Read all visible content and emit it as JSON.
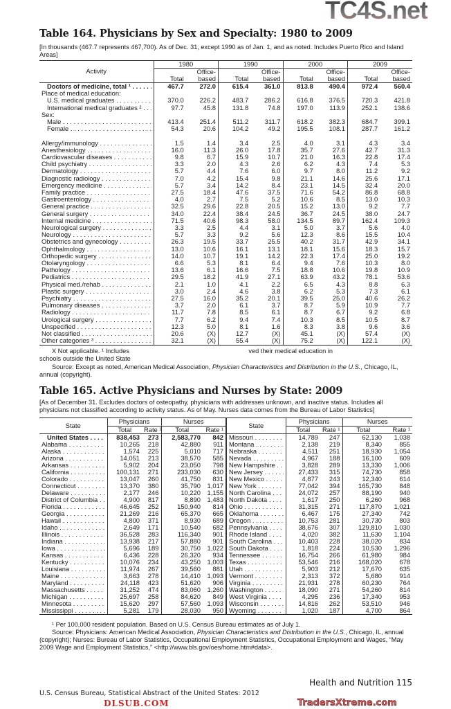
{
  "watermarks": {
    "top": "TC4S.net",
    "middle": "DLSUB.COM",
    "bottom": "TradersXtreme.com"
  },
  "table164": {
    "title": "Table 164. Physicians by Sex and Specialty: 1980 to 2009",
    "note": "[In thousands (467.7 represents 467,700). As of Dec. 31, except 1990 as of Jan. 1, and as noted. Includes Puerto Rico and Island Areas]",
    "activity_header": "Activity",
    "years": [
      "1980",
      "1990",
      "2000",
      "2009"
    ],
    "sub_total": "Total",
    "sub_office": "Office-\nbased",
    "rows": [
      {
        "label": "Doctors of medicine, total ¹",
        "bold": true,
        "v": [
          "467.7",
          "272.0",
          "615.4",
          "361.0",
          "813.8",
          "490.4",
          "972.4",
          "560.4"
        ]
      },
      {
        "label": "Place of medical education:",
        "heading": true
      },
      {
        "label": "U.S. medical graduates",
        "indent": true,
        "v": [
          "370.0",
          "226.2",
          "483.7",
          "286.2",
          "616.8",
          "376.5",
          "720.3",
          "421.8"
        ]
      },
      {
        "label": "International medical graduates ²",
        "indent": true,
        "v": [
          "97.7",
          "45.8",
          "131.8",
          "74.8",
          "197.0",
          "113.9",
          "252.1",
          "138.6"
        ]
      },
      {
        "label": "Sex:",
        "heading": true
      },
      {
        "label": "Male",
        "indent": true,
        "v": [
          "413.4",
          "251.4",
          "511.2",
          "311.7",
          "618.2",
          "382.3",
          "684.7",
          "399.1"
        ]
      },
      {
        "label": "Female",
        "indent": true,
        "v": [
          "54.3",
          "20.6",
          "104.2",
          "49.2",
          "195.5",
          "108.1",
          "287.7",
          "161.2"
        ]
      },
      {
        "label": "",
        "blank": true
      },
      {
        "label": "Allergy/immunology",
        "v": [
          "1.5",
          "1.4",
          "3.4",
          "2.5",
          "4.0",
          "3.1",
          "4.3",
          "3.4"
        ]
      },
      {
        "label": "Anesthesiology",
        "v": [
          "16.0",
          "11.3",
          "26.0",
          "17.8",
          "35.7",
          "27.6",
          "42.7",
          "31.3"
        ]
      },
      {
        "label": "Cardiovascular diseases",
        "v": [
          "9.8",
          "6.7",
          "15.9",
          "10.7",
          "21.0",
          "16.3",
          "22.8",
          "17.4"
        ]
      },
      {
        "label": "Child psychiatry",
        "v": [
          "3.3",
          "2.0",
          "4.3",
          "2.6",
          "6.2",
          "4.3",
          "7.4",
          "5.3"
        ]
      },
      {
        "label": "Dermatology",
        "v": [
          "5.7",
          "4.4",
          "7.6",
          "6.0",
          "9.7",
          "8.0",
          "11.2",
          "9.2"
        ]
      },
      {
        "label": "Diagnostic radiology",
        "v": [
          "7.0",
          "4.2",
          "15.4",
          "9.8",
          "21.1",
          "14.6",
          "25.6",
          "17.1"
        ]
      },
      {
        "label": "Emergency medicine",
        "v": [
          "5.7",
          "3.4",
          "14.2",
          "8.4",
          "23.1",
          "14.5",
          "32.4",
          "20.0"
        ]
      },
      {
        "label": "Family practice",
        "v": [
          "27.5",
          "18.4",
          "47.6",
          "37.5",
          "71.6",
          "54.2",
          "86.8",
          "68.8"
        ]
      },
      {
        "label": "Gastroenterology",
        "v": [
          "4.0",
          "2.7",
          "7.5",
          "5.2",
          "10.6",
          "8.5",
          "13.0",
          "10.3"
        ]
      },
      {
        "label": "General practice",
        "v": [
          "32.5",
          "29.6",
          "22.8",
          "20.5",
          "15.2",
          "13.0",
          "9.2",
          "7.7"
        ]
      },
      {
        "label": "General surgery",
        "v": [
          "34.0",
          "22.4",
          "38.4",
          "24.5",
          "36.7",
          "24.5",
          "38.0",
          "24.7"
        ]
      },
      {
        "label": "Internal medicine",
        "v": [
          "71.5",
          "40.6",
          "98.3",
          "58.0",
          "134.5",
          "89.7",
          "162.4",
          "109.3"
        ]
      },
      {
        "label": "Neurological surgery",
        "v": [
          "3.3",
          "2.5",
          "4.4",
          "3.1",
          "5.0",
          "3.7",
          "5.6",
          "4.0"
        ]
      },
      {
        "label": "Neurology",
        "v": [
          "5.7",
          "3.3",
          "9.2",
          "5.6",
          "12.3",
          "8.6",
          "15.5",
          "10.4"
        ]
      },
      {
        "label": "Obstetrics and gynecology",
        "v": [
          "26.3",
          "19.5",
          "33.7",
          "25.5",
          "40.2",
          "31.7",
          "42.9",
          "34.1"
        ]
      },
      {
        "label": "Ophthalmology",
        "v": [
          "13.0",
          "10.6",
          "16.1",
          "13.1",
          "18.1",
          "15.6",
          "18.3",
          "15.7"
        ]
      },
      {
        "label": "Orthopedic surgery",
        "v": [
          "14.0",
          "10.7",
          "19.1",
          "14.2",
          "22.3",
          "17.4",
          "25.0",
          "19.2"
        ]
      },
      {
        "label": "Otolaryngology",
        "v": [
          "6.6",
          "5.3",
          "8.1",
          "6.4",
          "9.4",
          "7.6",
          "10.3",
          "8.0"
        ]
      },
      {
        "label": "Pathology",
        "v": [
          "13.6",
          "6.1",
          "16.6",
          "7.5",
          "18.8",
          "10.6",
          "19.8",
          "10.9"
        ]
      },
      {
        "label": "Pediatrics",
        "v": [
          "29.5",
          "18.2",
          "41.9",
          "27.1",
          "63.9",
          "43.2",
          "78.1",
          "53.6"
        ]
      },
      {
        "label": "Physical med./rehab",
        "v": [
          "2.1",
          "1.0",
          "4.1",
          "2.2",
          "6.5",
          "4.3",
          "8.8",
          "6.3"
        ]
      },
      {
        "label": "Plastic surgery",
        "v": [
          "3.0",
          "2.4",
          "4.6",
          "3.8",
          "6.2",
          "5.3",
          "7.3",
          "6.1"
        ]
      },
      {
        "label": "Psychiatry",
        "v": [
          "27.5",
          "16.0",
          "35.2",
          "20.1",
          "39.5",
          "25.0",
          "40.6",
          "26.2"
        ]
      },
      {
        "label": "Pulmonary diseases",
        "v": [
          "3.7",
          "2.0",
          "6.1",
          "3.7",
          "8.7",
          "5.9",
          "10.9",
          "7.7"
        ]
      },
      {
        "label": "Radiology",
        "v": [
          "11.7",
          "7.8",
          "8.5",
          "6.1",
          "8.7",
          "6.7",
          "9.2",
          "6.8"
        ]
      },
      {
        "label": "Urological surgery",
        "v": [
          "7.7",
          "6.2",
          "9.4",
          "7.4",
          "10.3",
          "8.5",
          "10.5",
          "8.7"
        ]
      },
      {
        "label": "Unspecified",
        "v": [
          "12.3",
          "5.0",
          "8.1",
          "1.6",
          "8.3",
          "3.8",
          "9.6",
          "3.6"
        ]
      },
      {
        "label": "Not classified",
        "v": [
          "20.6",
          "(X)",
          "12.7",
          "(X)",
          "45.1",
          "(X)",
          "57.4",
          "(X)"
        ]
      },
      {
        "label": "Other categories ³",
        "v": [
          "32.1",
          "(X)",
          "55.4",
          "(X)",
          "75.2",
          "(X)",
          "122.1",
          "(X)"
        ]
      }
    ],
    "footnote": "X Not applicable. ¹ Includes",
    "footnote_tail": "ved their medical education in",
    "footnote_line2": "schools outside the United State",
    "source_prefix": "Source: Except as noted, American Medical Association, ",
    "source_title": "Physician Characteristics and Distribution in the U.S.",
    "source_suffix": ", Chicago, IL, annual (copyright)."
  },
  "table165": {
    "title": "Table 165. Active Physicians and Nurses by State: 2009",
    "note": "[As of December 31. Excludes doctors of osteopathy, physicians with addresses unknown, and inactive status. Includes all physicians not classified according to activity status. As of May. Nurses data comes from the Bureau of Labor Statistics]",
    "state_header": "State",
    "physicians_header": "Physicians",
    "nurses_header": "Nurses",
    "total_header": "Total",
    "rate_header": "Rate ¹",
    "left": [
      {
        "state": "United States",
        "bold": true,
        "v": [
          "838,453",
          "273",
          "2,583,770",
          "842"
        ]
      },
      {
        "state": "Alabama",
        "v": [
          "10,265",
          "218",
          "42,880",
          "911"
        ]
      },
      {
        "state": "Alaska",
        "v": [
          "1,574",
          "225",
          "5,010",
          "717"
        ]
      },
      {
        "state": "Arizona",
        "v": [
          "14,051",
          "213",
          "38,570",
          "585"
        ]
      },
      {
        "state": "Arkansas",
        "v": [
          "5,902",
          "204",
          "23,050",
          "798"
        ]
      },
      {
        "state": "California",
        "v": [
          "100,131",
          "271",
          "233,030",
          "630"
        ]
      },
      {
        "state": "Colorado",
        "v": [
          "13,047",
          "260",
          "41,750",
          "831"
        ]
      },
      {
        "state": "Connecticut",
        "v": [
          "13,370",
          "380",
          "35,790",
          "1,017"
        ]
      },
      {
        "state": "Delaware",
        "v": [
          "2,177",
          "246",
          "10,220",
          "1,155"
        ]
      },
      {
        "state": "District of Columbia",
        "v": [
          "4,900",
          "817",
          "8,890",
          "1,483"
        ]
      },
      {
        "state": "Florida",
        "v": [
          "46,645",
          "252",
          "150,940",
          "814"
        ]
      },
      {
        "state": "Georgia",
        "v": [
          "21,269",
          "216",
          "65,370",
          "665"
        ]
      },
      {
        "state": "Hawaii",
        "v": [
          "4,800",
          "371",
          "8,930",
          "689"
        ]
      },
      {
        "state": "Idaho",
        "v": [
          "2,649",
          "171",
          "10,540",
          "682"
        ]
      },
      {
        "state": "Illinois",
        "v": [
          "36,528",
          "283",
          "116,340",
          "901"
        ]
      },
      {
        "state": "Indiana",
        "v": [
          "13,938",
          "217",
          "57,880",
          "901"
        ]
      },
      {
        "state": "Iowa",
        "v": [
          "5,696",
          "189",
          "30,750",
          "1,022"
        ]
      },
      {
        "state": "Kansas",
        "v": [
          "6,436",
          "228",
          "26,320",
          "934"
        ]
      },
      {
        "state": "Kentucky",
        "v": [
          "10,076",
          "234",
          "43,250",
          "1,003"
        ]
      },
      {
        "state": "Louisiana",
        "v": [
          "11,974",
          "267",
          "39,560",
          "881"
        ]
      },
      {
        "state": "Maine",
        "v": [
          "3,663",
          "278",
          "14,410",
          "1,093"
        ]
      },
      {
        "state": "Maryland",
        "v": [
          "24,118",
          "423",
          "51,620",
          "906"
        ]
      },
      {
        "state": "Massachusetts",
        "v": [
          "31,252",
          "474",
          "83,060",
          "1,260"
        ]
      },
      {
        "state": "Michigan",
        "v": [
          "25,697",
          "258",
          "84,620",
          "849"
        ]
      },
      {
        "state": "Minnesota",
        "v": [
          "15,620",
          "297",
          "57,560",
          "1,093"
        ]
      },
      {
        "state": "Mississippi",
        "v": [
          "5,281",
          "179",
          "28,030",
          "950"
        ]
      }
    ],
    "right": [
      {
        "state": "Missouri",
        "v": [
          "14,789",
          "247",
          "62,130",
          "1,038"
        ]
      },
      {
        "state": "Montana",
        "v": [
          "2,138",
          "219",
          "8,340",
          "855"
        ]
      },
      {
        "state": "Nebraska",
        "v": [
          "4,511",
          "251",
          "18,930",
          "1,054"
        ]
      },
      {
        "state": "Nevada",
        "v": [
          "4,967",
          "188",
          "16,100",
          "609"
        ]
      },
      {
        "state": "New Hampshire",
        "v": [
          "3,828",
          "289",
          "13,330",
          "1,006"
        ]
      },
      {
        "state": "New Jersey",
        "v": [
          "27,433",
          "315",
          "74,730",
          "858"
        ]
      },
      {
        "state": "New Mexico",
        "v": [
          "4,877",
          "243",
          "12,340",
          "614"
        ]
      },
      {
        "state": "New York",
        "v": [
          "77,042",
          "394",
          "165,730",
          "848"
        ]
      },
      {
        "state": "North Carolina",
        "v": [
          "24,072",
          "257",
          "88,190",
          "940"
        ]
      },
      {
        "state": "North Dakota",
        "v": [
          "1,617",
          "250",
          "6,260",
          "968"
        ]
      },
      {
        "state": "Ohio",
        "v": [
          "31,315",
          "271",
          "117,870",
          "1,021"
        ]
      },
      {
        "state": "Oklahoma",
        "v": [
          "6,467",
          "175",
          "27,340",
          "742"
        ]
      },
      {
        "state": "Oregon",
        "v": [
          "10,753",
          "281",
          "30,730",
          "803"
        ]
      },
      {
        "state": "Pennsylvania",
        "v": [
          "38,676",
          "307",
          "129,810",
          "1,030"
        ]
      },
      {
        "state": "Rhode Island",
        "v": [
          "4,020",
          "382",
          "11,630",
          "1,104"
        ]
      },
      {
        "state": "South Carolina",
        "v": [
          "10,403",
          "228",
          "38,020",
          "834"
        ]
      },
      {
        "state": "South Dakota",
        "v": [
          "1,818",
          "224",
          "10,530",
          "1,296"
        ]
      },
      {
        "state": "Tennessee",
        "v": [
          "16,754",
          "266",
          "61,980",
          "984"
        ]
      },
      {
        "state": "Texas",
        "v": [
          "53,546",
          "216",
          "168,020",
          "678"
        ]
      },
      {
        "state": "Utah",
        "v": [
          "5,903",
          "212",
          "17,670",
          "635"
        ]
      },
      {
        "state": "Vermont",
        "v": [
          "2,313",
          "372",
          "5,680",
          "914"
        ]
      },
      {
        "state": "Virginia",
        "v": [
          "21,931",
          "278",
          "60,230",
          "764"
        ]
      },
      {
        "state": "Washington",
        "v": [
          "18,090",
          "271",
          "54,260",
          "814"
        ]
      },
      {
        "state": "West Virginia",
        "v": [
          "4,295",
          "236",
          "17,340",
          "953"
        ]
      },
      {
        "state": "Wisconsin",
        "v": [
          "14,816",
          "262",
          "53,510",
          "946"
        ]
      },
      {
        "state": "Wyoming",
        "v": [
          "1,020",
          "187",
          "4,700",
          "864"
        ]
      }
    ],
    "footnote": "¹ Per 100,000 resident population. Based on U.S. Census Bureau estimates as of July 1.",
    "source_prefix": "Source: Physicians: American Medical Association, ",
    "source_title": "Physician Characteristics and Distribution in the U.S.",
    "source_suffix": ", Chicago, IL, annual (copyright); Nurses: Bureau of Labor Statistics, Occupational Employment Statistics, Occupational Employment and Wages, “May 2009 Wage and Employment Statistics,” <http://www.bls.gov/oes/home.htm#data>."
  },
  "footer": {
    "section": "Health and Nutrition  115",
    "publication": "U.S. Census Bureau, Statistical Abstract of the United States: 2012"
  }
}
